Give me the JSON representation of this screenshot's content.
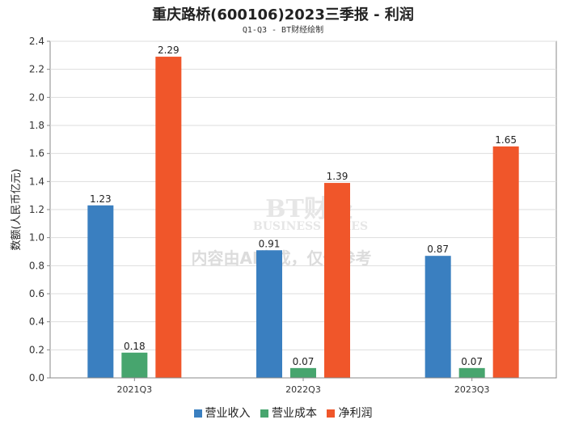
{
  "chart_data": {
    "type": "bar",
    "title": "重庆路桥(600106)2023三季报 - 利润",
    "subtitle": "Q1-Q3 - BT财经绘制",
    "ylabel": "数额(人民币亿元)",
    "xlabel": "",
    "ylim": [
      0,
      2.4
    ],
    "yticks": [
      "0.0",
      "0.2",
      "0.4",
      "0.6",
      "0.8",
      "1.0",
      "1.2",
      "1.4",
      "1.6",
      "1.8",
      "2.0",
      "2.2",
      "2.4"
    ],
    "categories": [
      "2021Q3",
      "2022Q3",
      "2023Q3"
    ],
    "series": [
      {
        "name": "营业收入",
        "color": "#3a7fc0",
        "values": [
          1.23,
          0.91,
          0.87
        ],
        "labels": [
          "1.23",
          "0.91",
          "0.87"
        ]
      },
      {
        "name": "营业成本",
        "color": "#47a56e",
        "values": [
          0.18,
          0.07,
          0.07
        ],
        "labels": [
          "0.18",
          "0.07",
          "0.07"
        ]
      },
      {
        "name": "净利润",
        "color": "#f0562a",
        "values": [
          2.29,
          1.39,
          1.65
        ],
        "labels": [
          "2.29",
          "1.39",
          "1.65"
        ]
      }
    ],
    "watermark": {
      "line1": "BT财经",
      "line2": "BUSINESS TIMES",
      "line3": "内容由AI生成，仅供参考"
    }
  }
}
